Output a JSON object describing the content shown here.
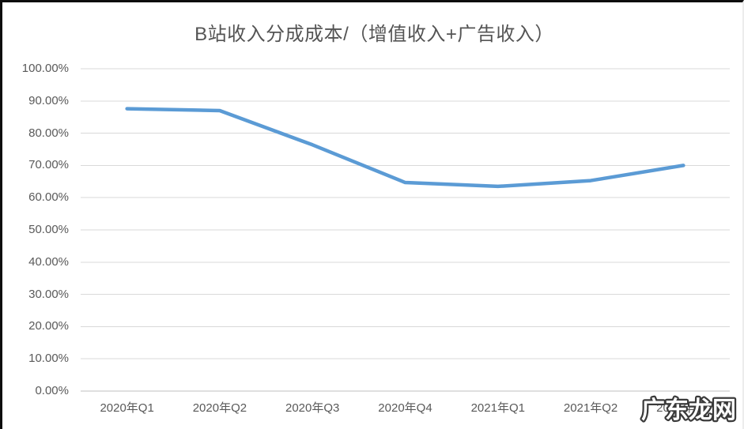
{
  "chart_data": {
    "type": "line",
    "title": "B站收入分成成本/（增值收入+广告收入）",
    "categories": [
      "2020年Q1",
      "2020年Q2",
      "2020年Q3",
      "2020年Q4",
      "2021年Q1",
      "2021年Q2",
      "2021年Q3"
    ],
    "series": [
      {
        "name": "B站收入分成成本/（增值收入+广告收入）",
        "values": [
          87.6,
          87.0,
          76.4,
          64.7,
          63.5,
          65.3,
          70.0
        ]
      }
    ],
    "unit": "%",
    "xlabel": "",
    "ylabel": "",
    "ylim": [
      0,
      100
    ],
    "y_tick_step": 10,
    "y_tick_labels": [
      "0.00%",
      "10.00%",
      "20.00%",
      "30.00%",
      "40.00%",
      "50.00%",
      "60.00%",
      "70.00%",
      "80.00%",
      "90.00%",
      "100.00%"
    ],
    "grid": "horizontal",
    "legend_position": "none",
    "line_color": "#5B9BD5",
    "gridline_color": "#D9D9D9",
    "axis_line_color": "#BFBFBF",
    "label_color": "#595959",
    "title_color": "#545454"
  },
  "watermark": {
    "text": "广东龙网"
  }
}
